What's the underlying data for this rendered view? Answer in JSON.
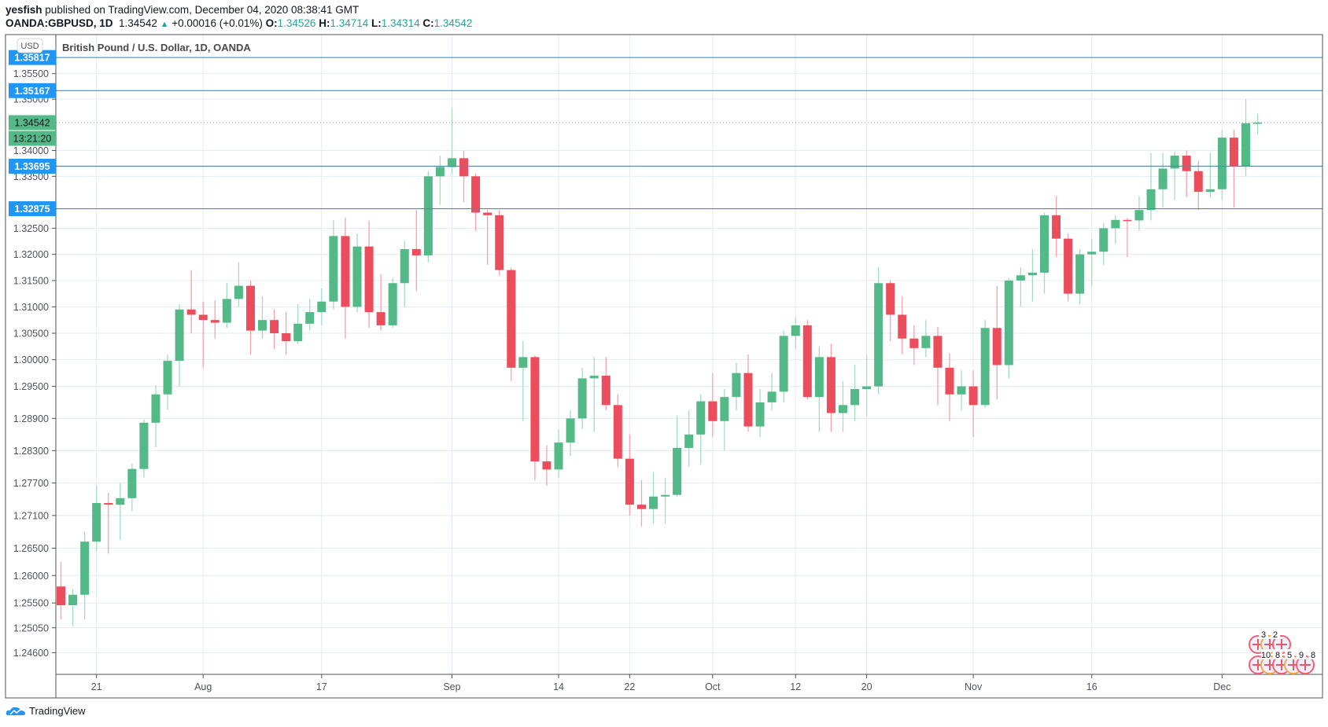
{
  "header": {
    "author": "yesfish",
    "published_text": "published on TradingView.com, December 04, 2020 08:38:41 GMT",
    "symbol": "OANDA:GBPUSD, 1D",
    "last": "1.34542",
    "change": "+0.00016 (+0.01%)",
    "o_label": "O:",
    "o": "1.34526",
    "h_label": "H:",
    "h": "1.34714",
    "l_label": "L:",
    "l": "1.34314",
    "c_label": "C:",
    "c": "1.34542"
  },
  "footer": {
    "brand": "TradingView"
  },
  "colors": {
    "up": "#53b987",
    "down": "#eb4d5c",
    "up_wick": "#a3dcc1",
    "down_wick": "#f5a3ab",
    "line": "#2196f3",
    "grid": "#e1ecf2"
  },
  "chart_data": {
    "type": "candlestick",
    "title": "British Pound / U.S. Dollar, 1D, OANDA",
    "currency_label": "USD",
    "y_scale": "log",
    "ylim": [
      1.2425,
      1.36
    ],
    "y_ticks": [
      "1.35500",
      "1.35000",
      "1.34000",
      "1.33500",
      "1.32500",
      "1.32000",
      "1.31500",
      "1.31000",
      "1.30500",
      "1.30000",
      "1.29500",
      "1.28900",
      "1.28300",
      "1.27700",
      "1.27100",
      "1.26500",
      "1.26000",
      "1.25500",
      "1.25050",
      "1.24600"
    ],
    "x_ticks": [
      {
        "date": "2020-07-21",
        "label": "21"
      },
      {
        "date": "2020-08-03",
        "label": "Aug"
      },
      {
        "date": "2020-08-17",
        "label": "17"
      },
      {
        "date": "2020-09-01",
        "label": "Sep"
      },
      {
        "date": "2020-09-14",
        "label": "14"
      },
      {
        "date": "2020-09-22",
        "label": "22"
      },
      {
        "date": "2020-10-01",
        "label": "Oct"
      },
      {
        "date": "2020-10-12",
        "label": "12"
      },
      {
        "date": "2020-10-20",
        "label": "20"
      },
      {
        "date": "2020-11-02",
        "label": "Nov"
      },
      {
        "date": "2020-11-16",
        "label": "16"
      },
      {
        "date": "2020-12-01",
        "label": "Dec"
      }
    ],
    "horizontal_lines": [
      {
        "price": 1.35817,
        "label": "1.35817"
      },
      {
        "price": 1.35167,
        "label": "1.35167"
      },
      {
        "price": 1.33695,
        "label": "1.33695"
      },
      {
        "price": 1.32875,
        "label": "1.32875"
      }
    ],
    "last_price": {
      "price": 1.34542,
      "label": "1.34542",
      "countdown": "13:21:20"
    },
    "events": {
      "row1": [
        "3",
        "2"
      ],
      "row2": [
        "10",
        "8",
        "5",
        "9",
        "8"
      ]
    },
    "candles_ohlc": [
      [
        "2020-07-16",
        1.258,
        1.2625,
        1.252,
        1.2546
      ],
      [
        "2020-07-17",
        1.2546,
        1.2575,
        1.2508,
        1.2565
      ],
      [
        "2020-07-20",
        1.2565,
        1.268,
        1.252,
        1.2662
      ],
      [
        "2020-07-21",
        1.2662,
        1.2765,
        1.2645,
        1.2733
      ],
      [
        "2020-07-22",
        1.2733,
        1.2752,
        1.264,
        1.273
      ],
      [
        "2020-07-23",
        1.273,
        1.277,
        1.2665,
        1.2742
      ],
      [
        "2020-07-24",
        1.2742,
        1.2806,
        1.2718,
        1.2796
      ],
      [
        "2020-07-27",
        1.2796,
        1.2888,
        1.278,
        1.2882
      ],
      [
        "2020-07-28",
        1.2882,
        1.2952,
        1.2836,
        1.2935
      ],
      [
        "2020-07-29",
        1.2935,
        1.301,
        1.2906,
        1.2998
      ],
      [
        "2020-07-30",
        1.2998,
        1.3105,
        1.295,
        1.3095
      ],
      [
        "2020-07-31",
        1.3095,
        1.317,
        1.305,
        1.3085
      ],
      [
        "2020-08-03",
        1.3085,
        1.311,
        1.2985,
        1.3075
      ],
      [
        "2020-08-04",
        1.3075,
        1.3112,
        1.304,
        1.307
      ],
      [
        "2020-08-05",
        1.307,
        1.3145,
        1.306,
        1.3115
      ],
      [
        "2020-08-06",
        1.3115,
        1.3185,
        1.31,
        1.314
      ],
      [
        "2020-08-07",
        1.314,
        1.315,
        1.301,
        1.3055
      ],
      [
        "2020-08-10",
        1.3055,
        1.312,
        1.304,
        1.3075
      ],
      [
        "2020-08-11",
        1.3075,
        1.3095,
        1.302,
        1.305
      ],
      [
        "2020-08-12",
        1.305,
        1.309,
        1.301,
        1.3035
      ],
      [
        "2020-08-13",
        1.3035,
        1.3105,
        1.303,
        1.3068
      ],
      [
        "2020-08-14",
        1.3068,
        1.3115,
        1.3055,
        1.309
      ],
      [
        "2020-08-17",
        1.309,
        1.3135,
        1.3065,
        1.311
      ],
      [
        "2020-08-18",
        1.311,
        1.3265,
        1.3095,
        1.3235
      ],
      [
        "2020-08-19",
        1.3235,
        1.327,
        1.304,
        1.31
      ],
      [
        "2020-08-20",
        1.31,
        1.324,
        1.309,
        1.3215
      ],
      [
        "2020-08-21",
        1.3215,
        1.3265,
        1.306,
        1.309
      ],
      [
        "2020-08-24",
        1.309,
        1.3162,
        1.3055,
        1.3065
      ],
      [
        "2020-08-25",
        1.3065,
        1.3155,
        1.306,
        1.3145
      ],
      [
        "2020-08-26",
        1.3145,
        1.3225,
        1.31,
        1.321
      ],
      [
        "2020-08-27",
        1.321,
        1.3285,
        1.313,
        1.3198
      ],
      [
        "2020-08-28",
        1.3198,
        1.336,
        1.3185,
        1.335
      ],
      [
        "2020-08-31",
        1.335,
        1.339,
        1.3295,
        1.3368
      ],
      [
        "2020-09-01",
        1.3368,
        1.3482,
        1.3355,
        1.3385
      ],
      [
        "2020-09-02",
        1.3385,
        1.34,
        1.33,
        1.335
      ],
      [
        "2020-09-03",
        1.335,
        1.3355,
        1.3245,
        1.328
      ],
      [
        "2020-09-04",
        1.328,
        1.3285,
        1.318,
        1.3275
      ],
      [
        "2020-09-07",
        1.3275,
        1.3285,
        1.316,
        1.317
      ],
      [
        "2020-09-08",
        1.317,
        1.3175,
        1.296,
        1.2985
      ],
      [
        "2020-09-09",
        1.2985,
        1.3035,
        1.2885,
        1.3005
      ],
      [
        "2020-09-10",
        1.3005,
        1.3008,
        1.2775,
        1.281
      ],
      [
        "2020-09-11",
        1.281,
        1.284,
        1.2765,
        1.2795
      ],
      [
        "2020-09-14",
        1.2795,
        1.287,
        1.278,
        1.2845
      ],
      [
        "2020-09-15",
        1.2845,
        1.2905,
        1.282,
        1.289
      ],
      [
        "2020-09-16",
        1.289,
        1.2985,
        1.287,
        1.2965
      ],
      [
        "2020-09-17",
        1.2965,
        1.3005,
        1.2865,
        1.297
      ],
      [
        "2020-09-18",
        1.297,
        1.3005,
        1.2905,
        1.2915
      ],
      [
        "2020-09-21",
        1.2915,
        1.2935,
        1.28,
        1.2815
      ],
      [
        "2020-09-22",
        1.2815,
        1.286,
        1.271,
        1.273
      ],
      [
        "2020-09-23",
        1.273,
        1.2775,
        1.269,
        1.2722
      ],
      [
        "2020-09-24",
        1.2722,
        1.279,
        1.2695,
        1.2745
      ],
      [
        "2020-09-25",
        1.2745,
        1.278,
        1.2695,
        1.2748
      ],
      [
        "2020-09-28",
        1.2748,
        1.2895,
        1.2745,
        1.2835
      ],
      [
        "2020-09-29",
        1.2835,
        1.2905,
        1.28,
        1.286
      ],
      [
        "2020-09-30",
        1.286,
        1.2935,
        1.2805,
        1.2922
      ],
      [
        "2020-10-01",
        1.2922,
        1.2975,
        1.2855,
        1.2885
      ],
      [
        "2020-10-02",
        1.2885,
        1.2945,
        1.283,
        1.293
      ],
      [
        "2020-10-05",
        1.293,
        1.2995,
        1.2905,
        1.2975
      ],
      [
        "2020-10-06",
        1.2975,
        1.301,
        1.2865,
        1.2875
      ],
      [
        "2020-10-07",
        1.2875,
        1.2945,
        1.2855,
        1.292
      ],
      [
        "2020-10-08",
        1.292,
        1.2975,
        1.2905,
        1.294
      ],
      [
        "2020-10-09",
        1.294,
        1.3055,
        1.292,
        1.3045
      ],
      [
        "2020-10-12",
        1.3045,
        1.308,
        1.302,
        1.3065
      ],
      [
        "2020-10-13",
        1.3065,
        1.3075,
        1.2925,
        1.293
      ],
      [
        "2020-10-14",
        1.293,
        1.3025,
        1.2865,
        1.3005
      ],
      [
        "2020-10-15",
        1.3005,
        1.303,
        1.2865,
        1.29
      ],
      [
        "2020-10-16",
        1.29,
        1.296,
        1.2865,
        1.2915
      ],
      [
        "2020-10-19",
        1.2915,
        1.299,
        1.2885,
        1.2945
      ],
      [
        "2020-10-20",
        1.2945,
        1.301,
        1.2895,
        1.295
      ],
      [
        "2020-10-21",
        1.295,
        1.3175,
        1.2935,
        1.3145
      ],
      [
        "2020-10-22",
        1.3145,
        1.315,
        1.3035,
        1.3085
      ],
      [
        "2020-10-23",
        1.3085,
        1.312,
        1.301,
        1.304
      ],
      [
        "2020-10-26",
        1.304,
        1.3065,
        1.299,
        1.3022
      ],
      [
        "2020-10-27",
        1.3022,
        1.3075,
        1.3005,
        1.3045
      ],
      [
        "2020-10-28",
        1.3045,
        1.3062,
        1.2915,
        1.2985
      ],
      [
        "2020-10-29",
        1.2985,
        1.3012,
        1.2885,
        1.2935
      ],
      [
        "2020-10-30",
        1.2935,
        1.298,
        1.2905,
        1.295
      ],
      [
        "2020-11-02",
        1.295,
        1.298,
        1.2855,
        1.2915
      ],
      [
        "2020-11-03",
        1.2915,
        1.3075,
        1.291,
        1.306
      ],
      [
        "2020-11-04",
        1.306,
        1.314,
        1.2925,
        1.299
      ],
      [
        "2020-11-05",
        1.299,
        1.3155,
        1.2965,
        1.315
      ],
      [
        "2020-11-06",
        1.315,
        1.3175,
        1.31,
        1.316
      ],
      [
        "2020-11-09",
        1.316,
        1.321,
        1.311,
        1.3165
      ],
      [
        "2020-11-10",
        1.3165,
        1.328,
        1.3125,
        1.3275
      ],
      [
        "2020-11-11",
        1.3275,
        1.3312,
        1.3195,
        1.323
      ],
      [
        "2020-11-12",
        1.323,
        1.324,
        1.311,
        1.3125
      ],
      [
        "2020-11-13",
        1.3125,
        1.321,
        1.3105,
        1.32
      ],
      [
        "2020-11-16",
        1.32,
        1.323,
        1.314,
        1.3205
      ],
      [
        "2020-11-17",
        1.3205,
        1.326,
        1.318,
        1.325
      ],
      [
        "2020-11-18",
        1.325,
        1.3275,
        1.322,
        1.3266
      ],
      [
        "2020-11-19",
        1.3266,
        1.327,
        1.3195,
        1.3265
      ],
      [
        "2020-11-20",
        1.3265,
        1.3312,
        1.3245,
        1.3285
      ],
      [
        "2020-11-23",
        1.3285,
        1.3395,
        1.3265,
        1.3325
      ],
      [
        "2020-11-24",
        1.3325,
        1.3395,
        1.329,
        1.3365
      ],
      [
        "2020-11-25",
        1.3365,
        1.3398,
        1.3305,
        1.339
      ],
      [
        "2020-11-26",
        1.339,
        1.34,
        1.331,
        1.336
      ],
      [
        "2020-11-27",
        1.336,
        1.338,
        1.3285,
        1.332
      ],
      [
        "2020-11-30",
        1.332,
        1.3395,
        1.331,
        1.3325
      ],
      [
        "2020-12-01",
        1.3325,
        1.344,
        1.3305,
        1.3425
      ],
      [
        "2020-12-02",
        1.3425,
        1.344,
        1.329,
        1.337
      ],
      [
        "2020-12-03",
        1.337,
        1.35,
        1.335,
        1.3453
      ],
      [
        "2020-12-04",
        1.34526,
        1.34714,
        1.34314,
        1.34542
      ]
    ]
  }
}
